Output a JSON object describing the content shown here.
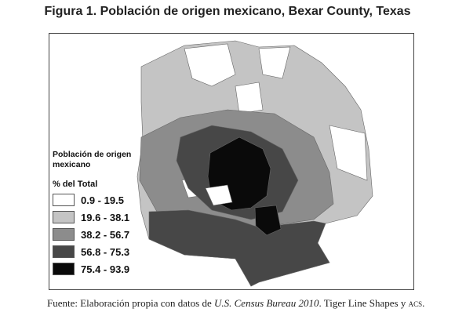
{
  "figure": {
    "title": "Figura 1. Población de origen mexicano, Bexar County, Texas",
    "legend": {
      "title": "Población de origen mexicano",
      "subtitle": "% del Total",
      "classes": [
        {
          "label": "0.9 - 19.5",
          "color": "#ffffff"
        },
        {
          "label": "19.6 - 38.1",
          "color": "#c4c4c4"
        },
        {
          "label": "38.2 - 56.7",
          "color": "#8c8c8c"
        },
        {
          "label": "56.8 - 75.3",
          "color": "#474747"
        },
        {
          "label": "75.4 - 93.9",
          "color": "#0a0a0a"
        }
      ]
    },
    "source": {
      "text1": "Fuente: Elaboración propia con datos de ",
      "italic": "U.S. Census Bureau 2010",
      "text2": ". Tiger Line Shapes y ",
      "smallcaps": "ACS",
      "text3": "."
    }
  }
}
